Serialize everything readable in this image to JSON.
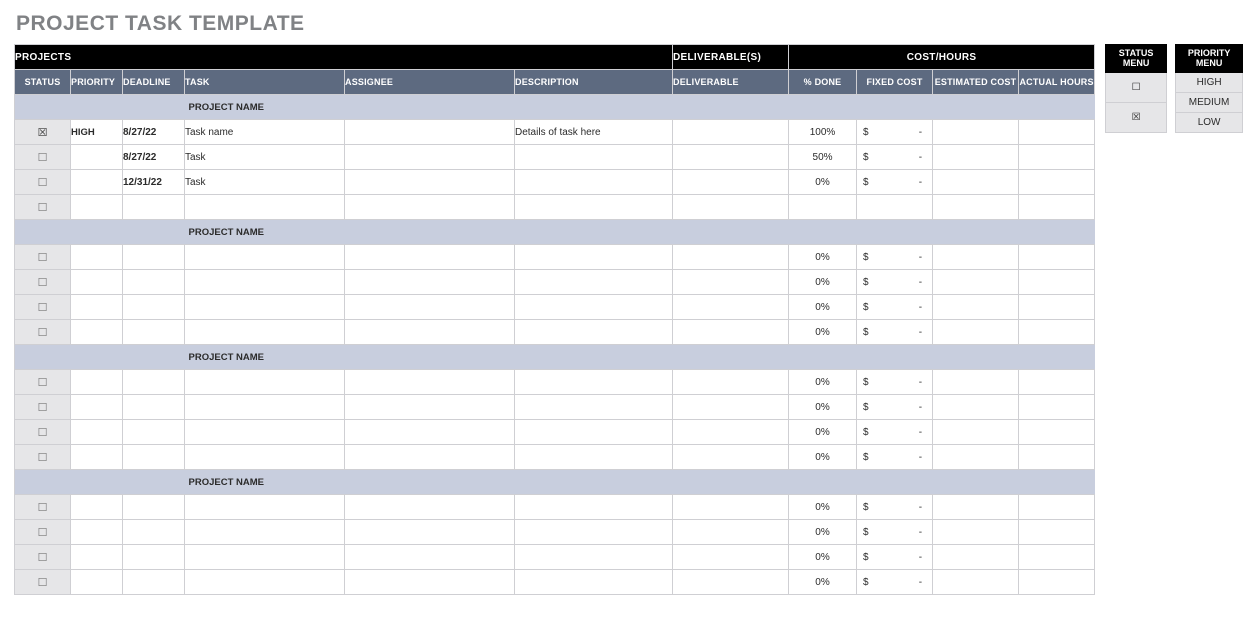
{
  "title": "PROJECT TASK TEMPLATE",
  "colors": {
    "title": "#808285",
    "band_bg": "#000000",
    "band_fg": "#ffffff",
    "cols_bg": "#5d6a80",
    "cols_fg": "#ffffff",
    "group_bg": "#c8cede",
    "status_col_bg": "#e6e6e8",
    "grid": "#cfcfd3",
    "side_cell_bg": "#e6e6e8"
  },
  "band": {
    "projects": "PROJECTS",
    "deliverables": "DELIVERABLE(S)",
    "cost_hours": "COST/HOURS"
  },
  "columns": {
    "status": "STATUS",
    "priority": "PRIORITY",
    "deadline": "DEADLINE",
    "task": "TASK",
    "assignee": "ASSIGNEE",
    "description": "DESCRIPTION",
    "deliverable": "DELIVERABLE",
    "pct_done": "% DONE",
    "fixed_cost": "FIXED COST",
    "estimated_cost": "ESTIMATED COST",
    "actual_hours": "ACTUAL HOURS"
  },
  "group_label": "PROJECT NAME",
  "currency_symbol": "$",
  "money_placeholder": "-",
  "checkbox": {
    "checked": "☒",
    "unchecked": "☐"
  },
  "groups": [
    {
      "name": "PROJECT NAME",
      "rows": [
        {
          "status": true,
          "priority": "HIGH",
          "deadline": "8/27/22",
          "task": "Task name",
          "assignee": "",
          "description": "Details of task here",
          "deliverable": "",
          "pct_done": "100%",
          "fixed_cost": "-",
          "estimated_cost": "",
          "actual_hours": ""
        },
        {
          "status": false,
          "priority": "",
          "deadline": "8/27/22",
          "task": "Task",
          "assignee": "",
          "description": "",
          "deliverable": "",
          "pct_done": "50%",
          "fixed_cost": "-",
          "estimated_cost": "",
          "actual_hours": ""
        },
        {
          "status": false,
          "priority": "",
          "deadline": "12/31/22",
          "task": "Task",
          "assignee": "",
          "description": "",
          "deliverable": "",
          "pct_done": "0%",
          "fixed_cost": "-",
          "estimated_cost": "",
          "actual_hours": ""
        },
        {
          "status": false,
          "priority": "",
          "deadline": "",
          "task": "",
          "assignee": "",
          "description": "",
          "deliverable": "",
          "pct_done": "",
          "fixed_cost": "",
          "estimated_cost": "",
          "actual_hours": ""
        }
      ]
    },
    {
      "name": "PROJECT NAME",
      "rows": [
        {
          "status": false,
          "priority": "",
          "deadline": "",
          "task": "",
          "assignee": "",
          "description": "",
          "deliverable": "",
          "pct_done": "0%",
          "fixed_cost": "-",
          "estimated_cost": "",
          "actual_hours": ""
        },
        {
          "status": false,
          "priority": "",
          "deadline": "",
          "task": "",
          "assignee": "",
          "description": "",
          "deliverable": "",
          "pct_done": "0%",
          "fixed_cost": "-",
          "estimated_cost": "",
          "actual_hours": ""
        },
        {
          "status": false,
          "priority": "",
          "deadline": "",
          "task": "",
          "assignee": "",
          "description": "",
          "deliverable": "",
          "pct_done": "0%",
          "fixed_cost": "-",
          "estimated_cost": "",
          "actual_hours": ""
        },
        {
          "status": false,
          "priority": "",
          "deadline": "",
          "task": "",
          "assignee": "",
          "description": "",
          "deliverable": "",
          "pct_done": "0%",
          "fixed_cost": "-",
          "estimated_cost": "",
          "actual_hours": ""
        }
      ]
    },
    {
      "name": "PROJECT NAME",
      "rows": [
        {
          "status": false,
          "priority": "",
          "deadline": "",
          "task": "",
          "assignee": "",
          "description": "",
          "deliverable": "",
          "pct_done": "0%",
          "fixed_cost": "-",
          "estimated_cost": "",
          "actual_hours": ""
        },
        {
          "status": false,
          "priority": "",
          "deadline": "",
          "task": "",
          "assignee": "",
          "description": "",
          "deliverable": "",
          "pct_done": "0%",
          "fixed_cost": "-",
          "estimated_cost": "",
          "actual_hours": ""
        },
        {
          "status": false,
          "priority": "",
          "deadline": "",
          "task": "",
          "assignee": "",
          "description": "",
          "deliverable": "",
          "pct_done": "0%",
          "fixed_cost": "-",
          "estimated_cost": "",
          "actual_hours": ""
        },
        {
          "status": false,
          "priority": "",
          "deadline": "",
          "task": "",
          "assignee": "",
          "description": "",
          "deliverable": "",
          "pct_done": "0%",
          "fixed_cost": "-",
          "estimated_cost": "",
          "actual_hours": ""
        }
      ]
    },
    {
      "name": "PROJECT NAME",
      "rows": [
        {
          "status": false,
          "priority": "",
          "deadline": "",
          "task": "",
          "assignee": "",
          "description": "",
          "deliverable": "",
          "pct_done": "0%",
          "fixed_cost": "-",
          "estimated_cost": "",
          "actual_hours": ""
        },
        {
          "status": false,
          "priority": "",
          "deadline": "",
          "task": "",
          "assignee": "",
          "description": "",
          "deliverable": "",
          "pct_done": "0%",
          "fixed_cost": "-",
          "estimated_cost": "",
          "actual_hours": ""
        },
        {
          "status": false,
          "priority": "",
          "deadline": "",
          "task": "",
          "assignee": "",
          "description": "",
          "deliverable": "",
          "pct_done": "0%",
          "fixed_cost": "-",
          "estimated_cost": "",
          "actual_hours": ""
        },
        {
          "status": false,
          "priority": "",
          "deadline": "",
          "task": "",
          "assignee": "",
          "description": "",
          "deliverable": "",
          "pct_done": "0%",
          "fixed_cost": "-",
          "estimated_cost": "",
          "actual_hours": ""
        }
      ]
    }
  ],
  "status_menu": {
    "title": "STATUS MENU",
    "items": [
      "☐",
      "☒"
    ]
  },
  "priority_menu": {
    "title": "PRIORITY MENU",
    "items": [
      "HIGH",
      "MEDIUM",
      "LOW"
    ]
  }
}
